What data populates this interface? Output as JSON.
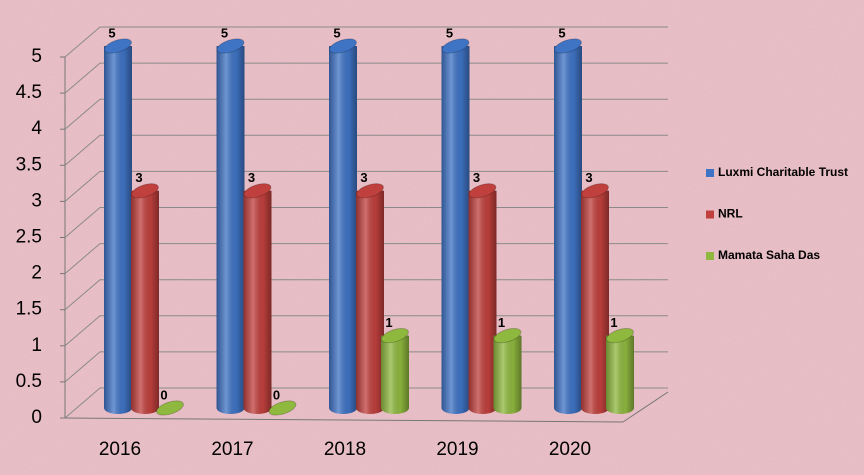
{
  "chart_data": {
    "type": "bar3d",
    "categories": [
      "2016",
      "2017",
      "2018",
      "2019",
      "2020"
    ],
    "series": [
      {
        "name": "Luxmi Charitable Trust",
        "color": "#3f73c4",
        "values": [
          5,
          5,
          5,
          5,
          5
        ]
      },
      {
        "name": "NRL",
        "color": "#c0403d",
        "values": [
          3,
          3,
          3,
          3,
          3
        ]
      },
      {
        "name": "Mamata Saha Das",
        "color": "#8fb83f",
        "values": [
          0,
          0,
          1,
          1,
          1
        ]
      }
    ],
    "ylim": [
      0,
      5
    ],
    "yticks": [
      0,
      0.5,
      1,
      1.5,
      2,
      2.5,
      3,
      3.5,
      4,
      4.5,
      5
    ],
    "grid": true,
    "legend": "right"
  }
}
